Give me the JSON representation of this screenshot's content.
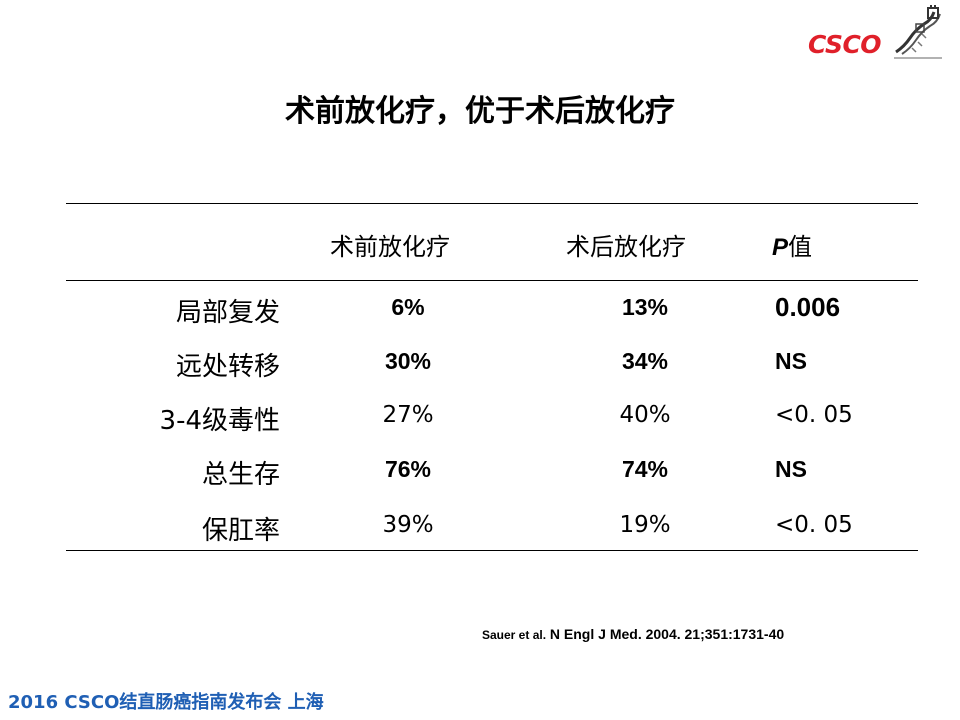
{
  "logo": {
    "text": "CSCO",
    "color": "#e0202a"
  },
  "title": "术前放化疗，优于术后放化疗",
  "table": {
    "headers": {
      "col1": "术前放化疗",
      "col2": "术后放化疗",
      "col3_italic": "P",
      "col3_rest": "值"
    },
    "rows": [
      {
        "label": "局部复发",
        "pre": "6%",
        "post": "13%",
        "p": "0.006",
        "bold": true
      },
      {
        "label": "远处转移",
        "pre": "30%",
        "post": "34%",
        "p": "NS",
        "bold": true
      },
      {
        "label": "3-4级毒性",
        "pre": "27%",
        "post": "40%",
        "p": "<0. 05",
        "bold": false
      },
      {
        "label": "总生存",
        "pre": "76%",
        "post": "74%",
        "p": "NS",
        "bold": true
      },
      {
        "label": "保肛率",
        "pre": "39%",
        "post": "19%",
        "p": "<0. 05",
        "bold": false
      }
    ]
  },
  "citation": {
    "authors": "Sauer et al.",
    "ref": " N Engl J Med. 2004. 21;351:1731-40"
  },
  "footer": "2016 CSCO结直肠癌指南发布会  上海",
  "colors": {
    "footer": "#1f5fb4",
    "logo": "#e0202a"
  }
}
